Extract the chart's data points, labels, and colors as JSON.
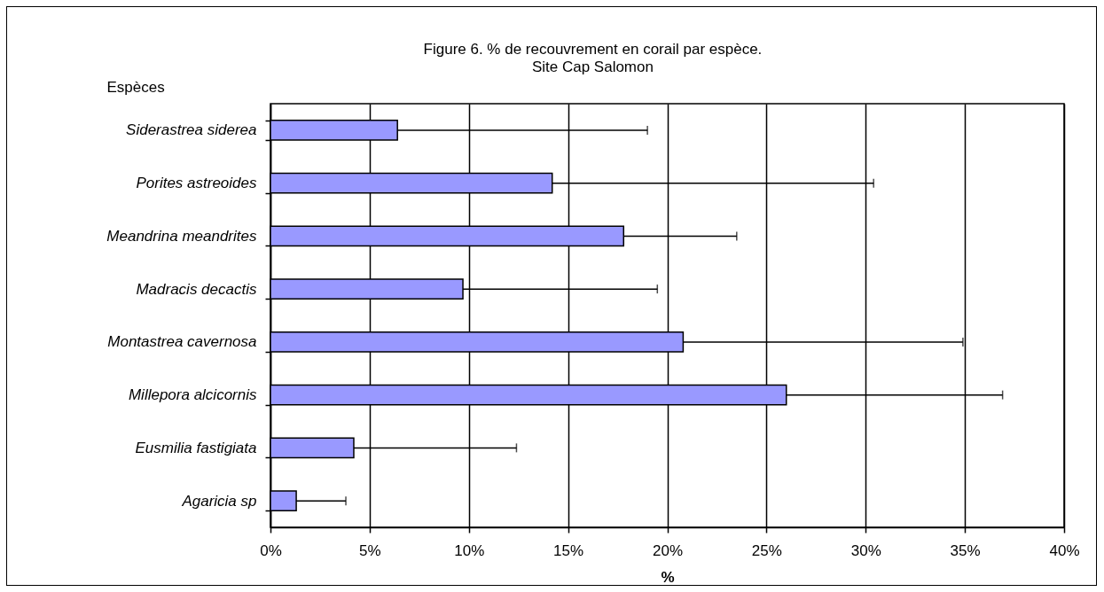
{
  "chart_data": {
    "type": "bar",
    "orientation": "horizontal",
    "title": "Figure 6. % de recouvrement en corail par espèce.",
    "subtitle": "Site Cap Salomon",
    "xlabel": "%",
    "ylabel": "Espèces",
    "categories": [
      "Siderastrea siderea",
      "Porites astreoides",
      "Meandrina meandrites",
      "Madracis decactis",
      "Montastrea cavernosa",
      "Millepora alcicornis",
      "Eusmilia fastigiata",
      "Agaricia sp"
    ],
    "values": [
      6.4,
      14.2,
      17.8,
      9.7,
      20.8,
      26.0,
      4.2,
      1.3
    ],
    "errors": [
      [
        6.4,
        19.0
      ],
      [
        14.2,
        30.4
      ],
      [
        17.8,
        23.5
      ],
      [
        9.7,
        19.5
      ],
      [
        20.8,
        34.9
      ],
      [
        26.0,
        36.9
      ],
      [
        4.2,
        12.4
      ],
      [
        1.3,
        3.8
      ]
    ],
    "color": "#9999ff",
    "xlim": [
      0,
      40
    ],
    "xticks": [
      {
        "value": 0,
        "label": "0%"
      },
      {
        "value": 5,
        "label": "5%"
      },
      {
        "value": 10,
        "label": "10%"
      },
      {
        "value": 15,
        "label": "15%"
      },
      {
        "value": 20,
        "label": "20%"
      },
      {
        "value": 25,
        "label": "25%"
      },
      {
        "value": 30,
        "label": "30%"
      },
      {
        "value": 35,
        "label": "35%"
      },
      {
        "value": 40,
        "label": "40%"
      }
    ],
    "grid": "x"
  }
}
